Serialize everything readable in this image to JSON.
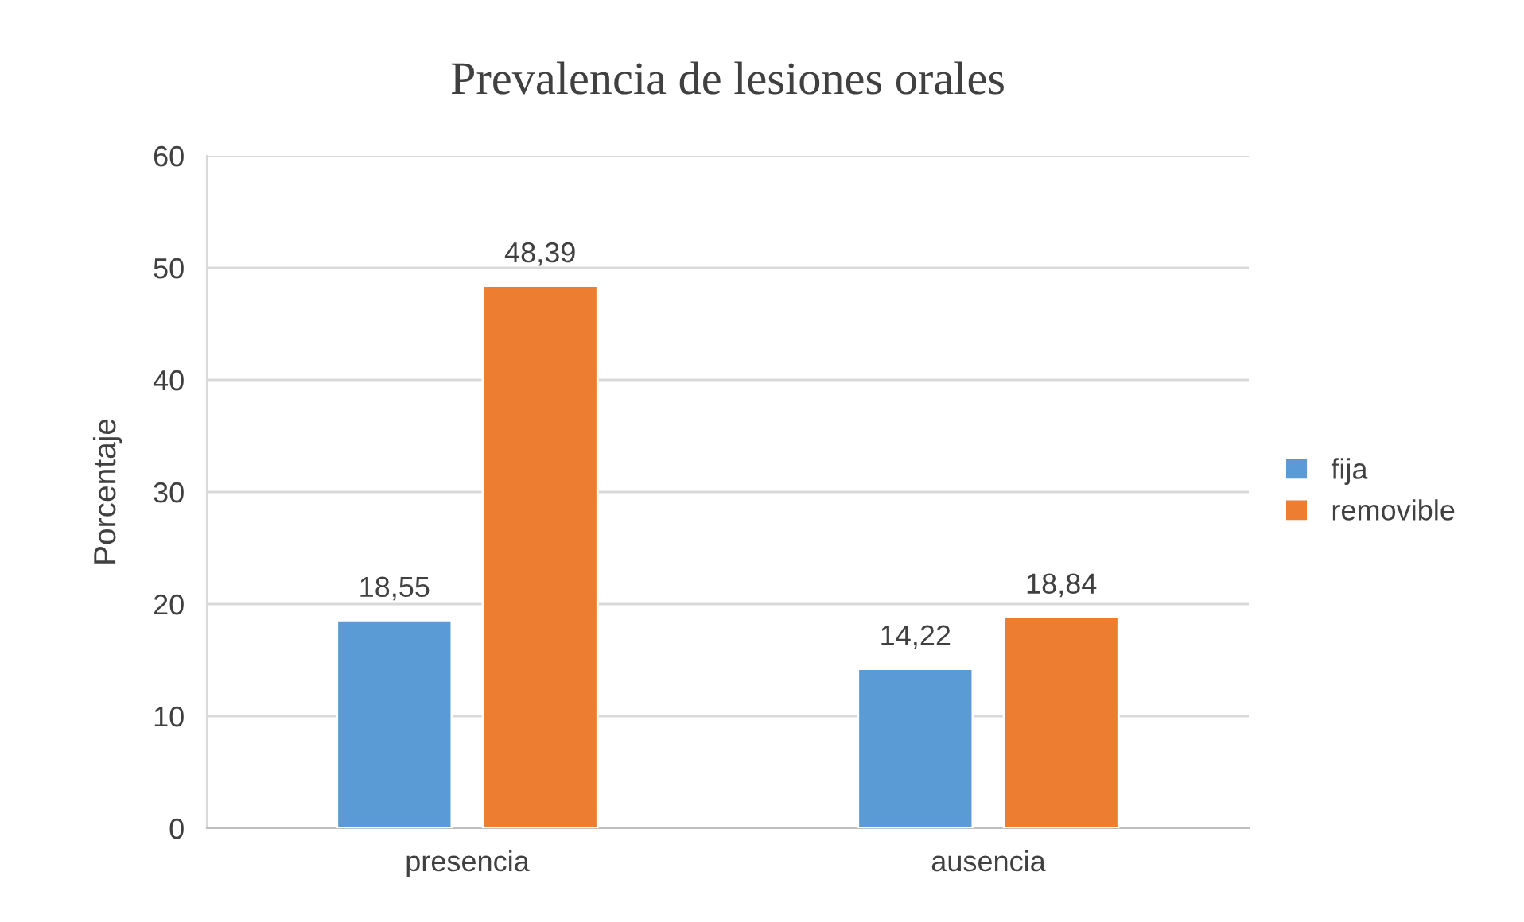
{
  "chart_data": {
    "type": "bar",
    "title": "Prevalencia de lesiones orales",
    "ylabel": "Porcentaje",
    "categories": [
      "presencia",
      "ausencia"
    ],
    "series": [
      {
        "name": "fija",
        "color": "#5b9bd5",
        "values": [
          18.55,
          14.22
        ],
        "value_labels": [
          "18,55",
          "14,22"
        ]
      },
      {
        "name": "removible",
        "color": "#ed7d31",
        "values": [
          48.39,
          18.84
        ],
        "value_labels": [
          "48,39",
          "18,84"
        ]
      }
    ],
    "ylim": [
      0,
      60
    ],
    "yticks": [
      0,
      10,
      20,
      30,
      40,
      50,
      60
    ],
    "grid": "y",
    "legend": "right"
  }
}
